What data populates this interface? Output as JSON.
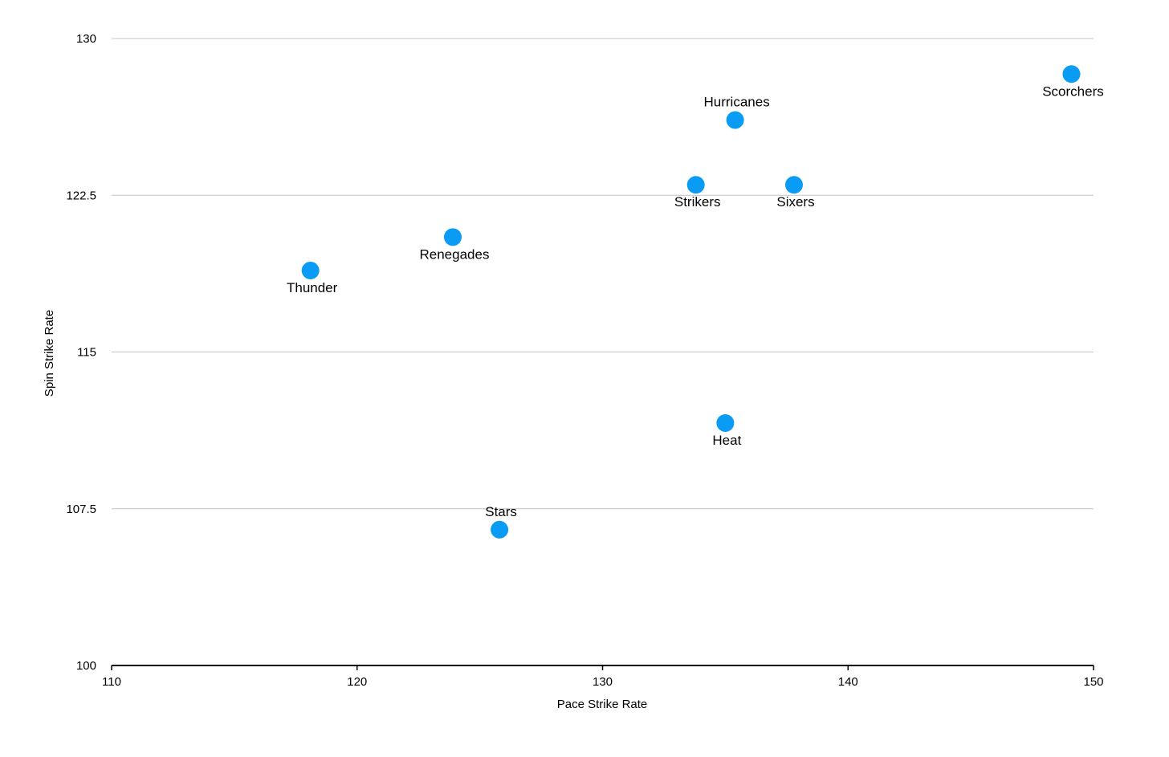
{
  "chart_data": {
    "type": "scatter",
    "title": "",
    "xlabel": "Pace Strike Rate",
    "ylabel": "Spin Strike Rate",
    "xlim": [
      110,
      150
    ],
    "ylim": [
      100,
      130
    ],
    "xticks": [
      110,
      120,
      130,
      140,
      150
    ],
    "xtick_labels": [
      "110",
      "120",
      "130",
      "140",
      "150"
    ],
    "yticks": [
      100,
      107.5,
      115,
      122.5,
      130
    ],
    "ytick_labels": [
      "100",
      "107.5",
      "115",
      "122.5",
      "130"
    ],
    "grid": true,
    "legend": "none",
    "point_color": "#0a9bf5",
    "points": [
      {
        "label": "Scorchers",
        "x": 149.1,
        "y": 128.3,
        "label_pos": "below"
      },
      {
        "label": "Hurricanes",
        "x": 135.4,
        "y": 126.1,
        "label_pos": "above"
      },
      {
        "label": "Strikers",
        "x": 133.8,
        "y": 123.0,
        "label_pos": "below"
      },
      {
        "label": "Sixers",
        "x": 137.8,
        "y": 123.0,
        "label_pos": "below"
      },
      {
        "label": "Renegades",
        "x": 123.9,
        "y": 120.5,
        "label_pos": "below"
      },
      {
        "label": "Thunder",
        "x": 118.1,
        "y": 118.9,
        "label_pos": "below"
      },
      {
        "label": "Heat",
        "x": 135.0,
        "y": 111.6,
        "label_pos": "below"
      },
      {
        "label": "Stars",
        "x": 125.8,
        "y": 106.5,
        "label_pos": "above"
      }
    ]
  }
}
